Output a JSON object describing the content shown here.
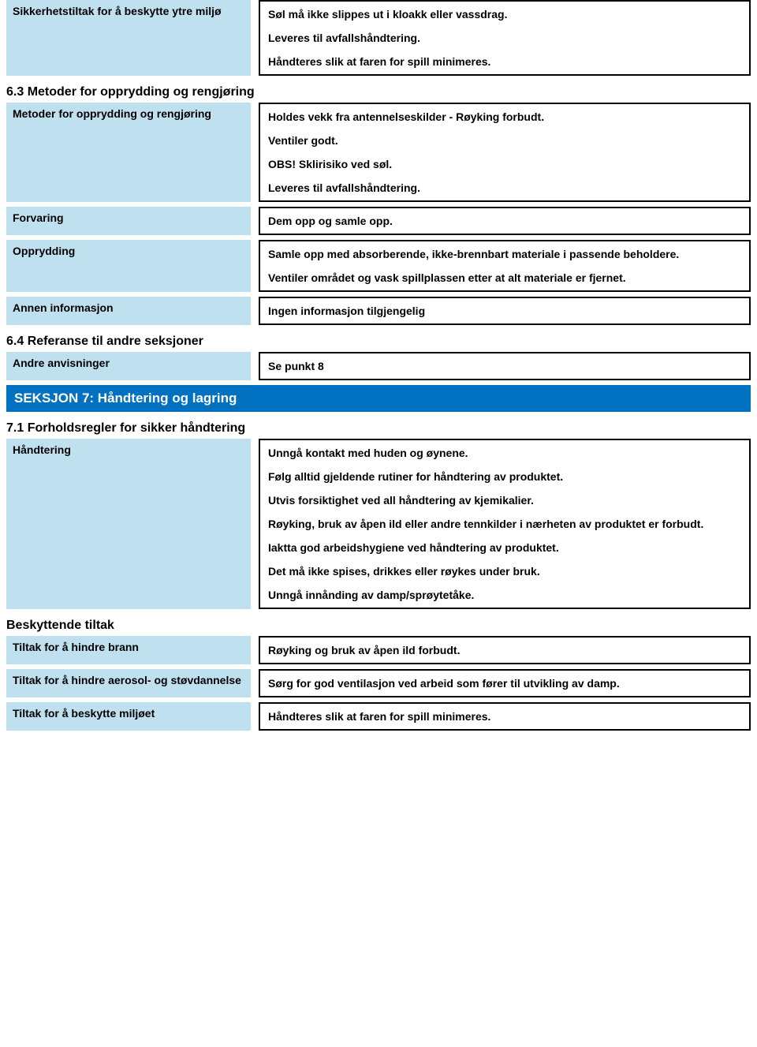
{
  "colors": {
    "label_bg": "#bfe0ef",
    "section_bg": "#0070c0",
    "section_fg": "#ffffff",
    "text": "#000000",
    "border": "#000000"
  },
  "typography": {
    "body_size_pt": 11,
    "heading_size_pt": 12,
    "section_size_pt": 13,
    "weight": "bold",
    "family": "Arial"
  },
  "rows": [
    {
      "label": "Sikkerhetstiltak for å beskytte ytre miljø",
      "paras": [
        "Søl må ikke slippes ut i kloakk eller vassdrag.",
        "Leveres til avfallshåndtering.",
        "Håndteres slik at faren for spill minimeres."
      ]
    }
  ],
  "sub63": "6.3 Metoder for opprydding og rengjøring",
  "rows63": [
    {
      "label": "Metoder for opprydding og rengjøring",
      "paras": [
        "Holdes vekk fra antennelseskilder - Røyking forbudt.",
        "Ventiler godt.",
        "OBS! Sklirisiko ved søl.",
        "Leveres til avfallshåndtering."
      ]
    },
    {
      "label": "Forvaring",
      "paras": [
        "Dem opp og samle opp."
      ]
    },
    {
      "label": "Opprydding",
      "paras": [
        "Samle opp med absorberende, ikke-brennbart materiale i passende beholdere.",
        "Ventiler området og vask spillplassen etter at alt materiale er fjernet."
      ]
    },
    {
      "label": "Annen informasjon",
      "paras": [
        "Ingen informasjon tilgjengelig"
      ]
    }
  ],
  "sub64": "6.4 Referanse til andre seksjoner",
  "rows64": [
    {
      "label": "Andre anvisninger",
      "paras": [
        "Se punkt 8"
      ]
    }
  ],
  "section7": "SEKSJON 7: Håndtering og lagring",
  "sub71": "7.1 Forholdsregler for sikker håndtering",
  "rows71a": [
    {
      "label": "Håndtering",
      "paras": [
        "Unngå kontakt med huden og øynene.",
        "Følg alltid gjeldende rutiner for håndtering av produktet.",
        "Utvis forsiktighet ved all håndtering av kjemikalier.",
        "Røyking, bruk av åpen ild eller andre tennkilder i nærheten av produktet er forbudt.",
        "Iaktta god arbeidshygiene ved håndtering av produktet.",
        "Det må ikke spises, drikkes eller røykes under bruk.",
        "Unngå innånding av damp/sprøytetåke."
      ]
    }
  ],
  "sub71b": "Beskyttende tiltak",
  "rows71b": [
    {
      "label": "Tiltak for å hindre brann",
      "paras": [
        "Røyking og bruk av åpen ild forbudt."
      ]
    },
    {
      "label": "Tiltak for å hindre aerosol- og støvdannelse",
      "paras": [
        "Sørg for god ventilasjon ved arbeid som fører til utvikling av damp."
      ]
    },
    {
      "label": "Tiltak for å beskytte miljøet",
      "paras": [
        "Håndteres slik at faren for spill minimeres."
      ]
    }
  ]
}
